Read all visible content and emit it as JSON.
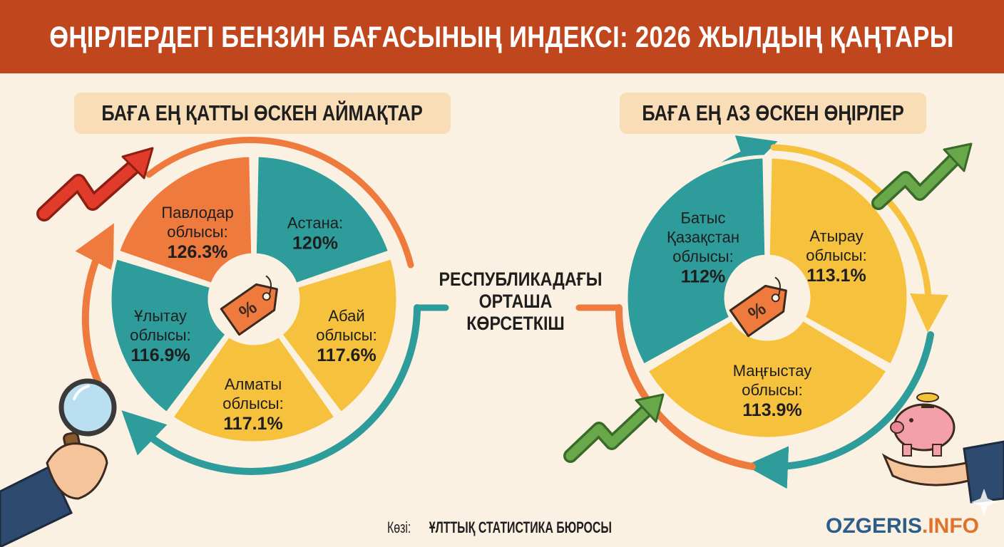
{
  "title": "ӨҢІРЛЕРДЕГІ БЕНЗИН БАҒАСЫНЫҢ ИНДЕКСІ: 2026 ЖЫЛДЫҢ ҚАҢТАРЫ",
  "left_panel": {
    "heading": "БАҒА ЕҢ ҚАТТЫ ӨСКЕН АЙМАҚТАР",
    "regions": [
      {
        "name_line1": "Павлодар",
        "name_line2": "облысы:",
        "value": "126.3%",
        "color": "#ef7a3e"
      },
      {
        "name_line1": "Астана:",
        "name_line2": "",
        "value": "120%",
        "color": "#2d9c9a"
      },
      {
        "name_line1": "Абай",
        "name_line2": "облысы:",
        "value": "117.6%",
        "color": "#f6c13d"
      },
      {
        "name_line1": "Алматы",
        "name_line2": "облысы:",
        "value": "117.1%",
        "color": "#f6c13d"
      },
      {
        "name_line1": "Ұлытау",
        "name_line2": "облысы:",
        "value": "116.9%",
        "color": "#2d9c9a"
      }
    ]
  },
  "right_panel": {
    "heading": "БАҒА ЕҢ АЗ ӨСКЕН ӨҢІРЛЕР",
    "regions": [
      {
        "name_line1": "Батыс",
        "name_line2": "Қазақстан",
        "name_line3": "облысы:",
        "value": "112%",
        "color": "#2d9c9a"
      },
      {
        "name_line1": "Атырау",
        "name_line2": "облысы:",
        "value": "113.1%",
        "color": "#f6c13d"
      },
      {
        "name_line1": "Маңғыстау",
        "name_line2": "облысы:",
        "value": "113.9%",
        "color": "#f6c13d"
      }
    ]
  },
  "center_label": {
    "line1": "РЕСПУБЛИКАДАҒЫ",
    "line2": "ОРТАША",
    "line3": "КӨРСЕТКІШ"
  },
  "source": {
    "prefix": "Көзі: ",
    "name": "ҰЛТТЫҚ СТАТИСТИКА БЮРОСЫ"
  },
  "brand": {
    "part1": "OZGERIS",
    "part2": ".INFO"
  },
  "colors": {
    "header": "#c0461e",
    "teal": "#2d9c9a",
    "orange": "#ef7a3e",
    "yellow": "#f6c13d",
    "pill": "#f9ddb7",
    "background": "#fbf1e3"
  }
}
